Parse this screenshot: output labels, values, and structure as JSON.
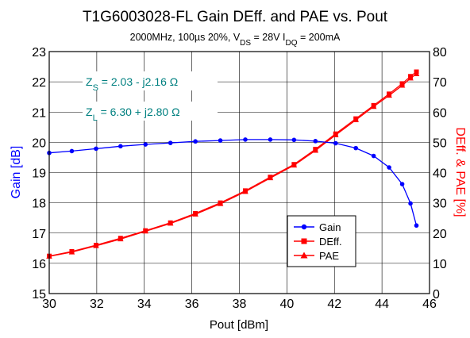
{
  "chart_data": {
    "type": "line",
    "title": "T1G6003028-FL Gain DEff. and PAE vs. Pout",
    "subtitle": {
      "prefix": "2000MHz, 100µs 20%, V",
      "vds_sub": "DS",
      "mid": " = 28V I",
      "idq_sub": "DQ",
      "suffix": " = 200mA"
    },
    "xlabel": "Pout [dBm]",
    "ylabel_left": "Gain [dB]",
    "ylabel_right": "DEff. & PAE [%]",
    "xlim": [
      30,
      46
    ],
    "ylim_left": [
      15,
      23
    ],
    "ylim_right": [
      0,
      80
    ],
    "x_ticks": [
      "30",
      "32",
      "34",
      "36",
      "38",
      "40",
      "42",
      "44",
      "46"
    ],
    "y_left_ticks": [
      "15",
      "16",
      "17",
      "18",
      "19",
      "20",
      "21",
      "22",
      "23"
    ],
    "y_right_ticks": [
      "0",
      "10",
      "20",
      "30",
      "40",
      "50",
      "60",
      "70",
      "80"
    ],
    "grid": true,
    "legend_position": "lower-right",
    "annotations": {
      "zs": {
        "main": "Z",
        "sub": "S",
        "rest": " =  2.03 - j2.16  Ω"
      },
      "zl": {
        "main": "Z",
        "sub": "L",
        "rest": " =  6.30 + j2.80  Ω"
      }
    },
    "series": [
      {
        "name": "Gain",
        "axis": "left",
        "color": "#0000ff",
        "marker": "circle",
        "x": [
          30.0,
          30.95,
          31.97,
          33.0,
          34.05,
          35.1,
          36.15,
          37.2,
          38.25,
          39.3,
          40.3,
          41.2,
          42.05,
          42.9,
          43.65,
          44.3,
          44.85,
          45.2,
          45.45
        ],
        "y": [
          19.65,
          19.71,
          19.79,
          19.87,
          19.93,
          19.98,
          20.03,
          20.06,
          20.09,
          20.09,
          20.08,
          20.04,
          19.97,
          19.81,
          19.55,
          19.17,
          18.62,
          17.98,
          17.25
        ]
      },
      {
        "name": "DEff.",
        "axis": "right",
        "color": "#ff0000",
        "marker": "square",
        "x": [
          30.0,
          30.95,
          31.97,
          33.0,
          34.05,
          35.1,
          36.15,
          37.2,
          38.25,
          39.3,
          40.3,
          41.2,
          42.05,
          42.9,
          43.65,
          44.3,
          44.85,
          45.2,
          45.45
        ],
        "y": [
          12.4,
          13.9,
          16.0,
          18.3,
          20.8,
          23.4,
          26.5,
          30.0,
          34.0,
          38.5,
          42.7,
          47.7,
          52.8,
          57.8,
          62.2,
          66.0,
          69.4,
          71.8,
          73.3
        ]
      },
      {
        "name": "PAE",
        "axis": "right",
        "color": "#ff0000",
        "marker": "triangle",
        "x": [
          30.0,
          30.95,
          31.97,
          33.0,
          34.05,
          35.1,
          36.15,
          37.2,
          38.25,
          39.3,
          40.3,
          41.2,
          42.05,
          42.9,
          43.65,
          44.3,
          44.85,
          45.2,
          45.45
        ],
        "y": [
          12.3,
          13.7,
          15.8,
          18.0,
          20.6,
          23.2,
          26.2,
          29.7,
          33.7,
          38.2,
          42.4,
          47.3,
          52.4,
          57.4,
          61.8,
          65.5,
          68.8,
          71.2,
          72.6
        ]
      }
    ]
  }
}
